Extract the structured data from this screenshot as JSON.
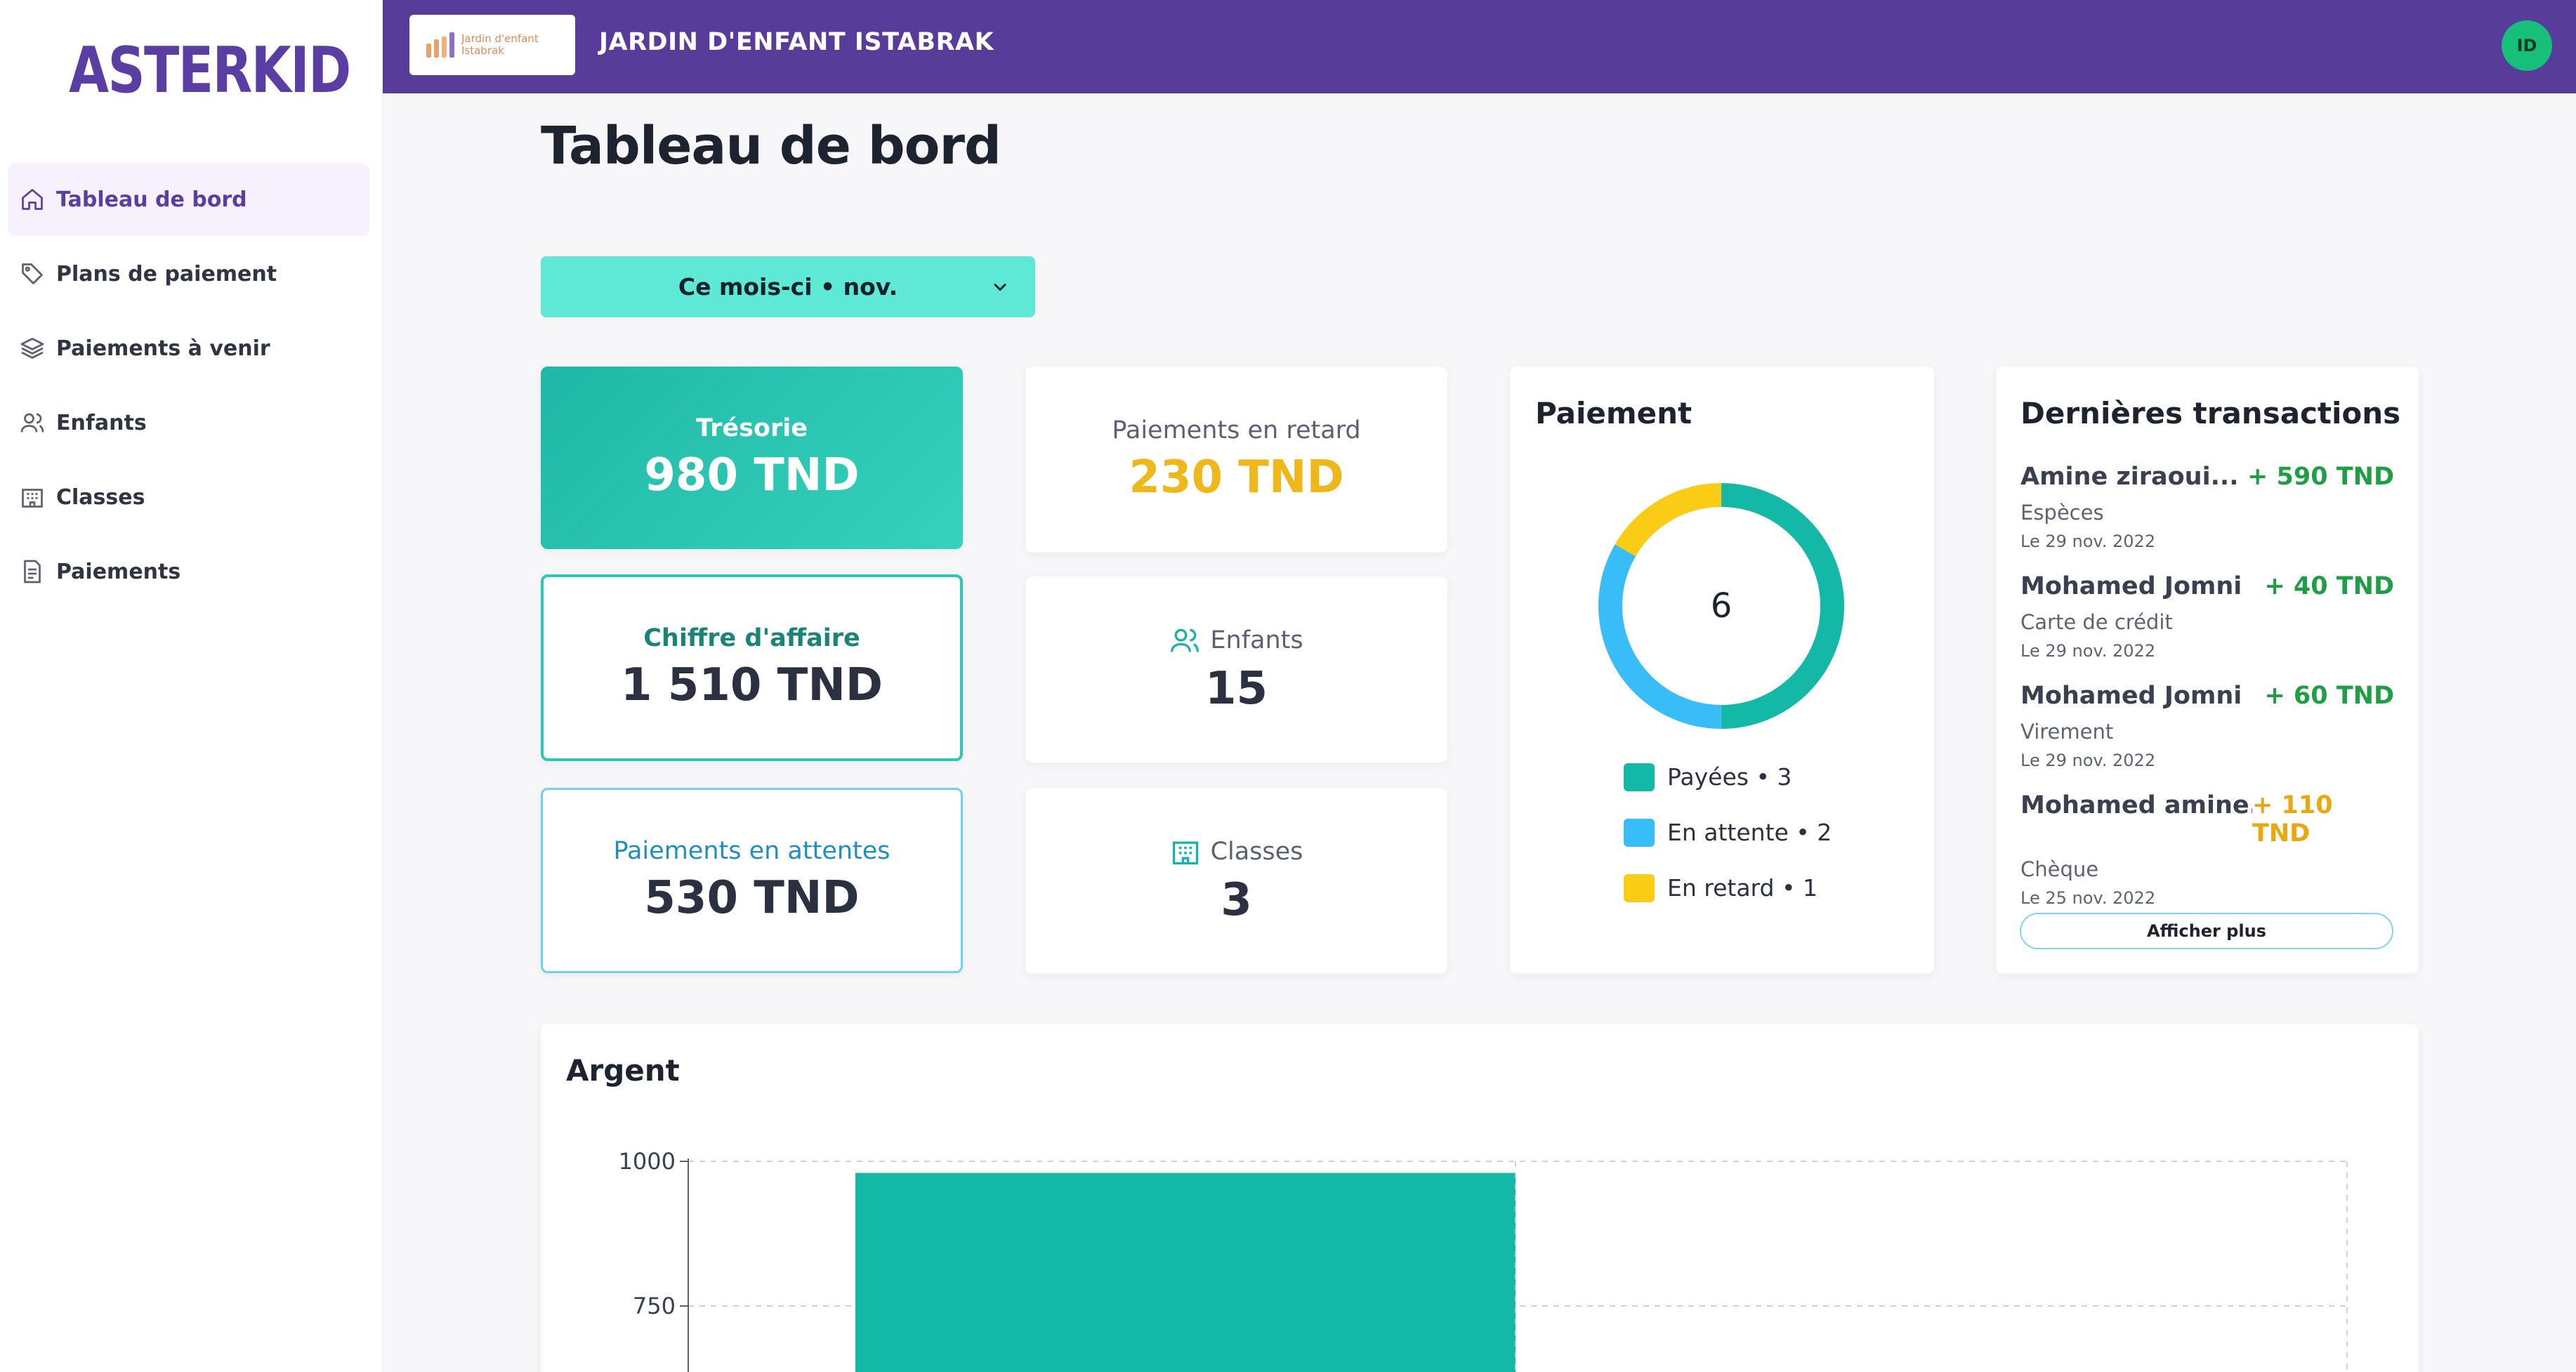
{
  "app": {
    "brand": "ASTERKID"
  },
  "sidebar": {
    "items": [
      {
        "label": "Tableau de bord",
        "icon": "home-icon",
        "active": true
      },
      {
        "label": "Plans de paiement",
        "icon": "tag-icon"
      },
      {
        "label": "Paiements à venir",
        "icon": "layers-icon"
      },
      {
        "label": "Enfants",
        "icon": "users-icon"
      },
      {
        "label": "Classes",
        "icon": "building-icon"
      },
      {
        "label": "Paiements",
        "icon": "document-icon"
      }
    ]
  },
  "topbar": {
    "logo_text_line1": "Jardin d'enfant",
    "logo_text_line2": "Istabrak",
    "school_name": "JARDIN D'ENFANT ISTABRAK",
    "avatar_initials": "ID"
  },
  "main": {
    "title": "Tableau de bord",
    "period": "Ce mois-ci • nov."
  },
  "stats": {
    "tresorie": {
      "label": "Trésorie",
      "value": "980 TND"
    },
    "chiffre": {
      "label": "Chiffre d'affaire",
      "value": "1 510 TND"
    },
    "attente": {
      "label": "Paiements en attentes",
      "value": "530 TND"
    },
    "retard": {
      "label": "Paiements en retard",
      "value": "230 TND"
    },
    "enfants": {
      "label": "Enfants",
      "value": "15"
    },
    "classes": {
      "label": "Classes",
      "value": "3"
    }
  },
  "paiement": {
    "title": "Paiement",
    "total": "6",
    "segments": [
      {
        "label": "Payées • 3",
        "count": 3,
        "color": "#13b8a6"
      },
      {
        "label": "En attente • 2",
        "count": 2,
        "color": "#38bdf8"
      },
      {
        "label": "En retard • 1",
        "count": 1,
        "color": "#facc15"
      }
    ]
  },
  "transactions": {
    "title": "Dernières transactions",
    "items": [
      {
        "name": "Amine ziraoui...",
        "amount": "+ 590 TND",
        "method": "Espèces",
        "date": "Le 29 nov. 2022",
        "status": "ok"
      },
      {
        "name": "Mohamed Jomni",
        "amount": "+ 40 TND",
        "method": "Carte de crédit",
        "date": "Le 29 nov. 2022",
        "status": "ok"
      },
      {
        "name": "Mohamed Jomni",
        "amount": "+ 60 TND",
        "method": "Virement",
        "date": "Le 29 nov. 2022",
        "status": "ok"
      },
      {
        "name": "Mohamed amine...",
        "amount": "+ 110 TND",
        "method": "Chèque",
        "date": "Le 25 nov. 2022",
        "status": "warn"
      }
    ],
    "more_label": "Afficher plus"
  },
  "chart_data": {
    "type": "bar",
    "title": "Argent",
    "y_ticks": [
      "1000",
      "750"
    ],
    "ylim": [
      0,
      1000
    ],
    "categories": [
      ""
    ],
    "values": [
      980
    ],
    "bar_color": "#13b8a6",
    "grid": true
  }
}
